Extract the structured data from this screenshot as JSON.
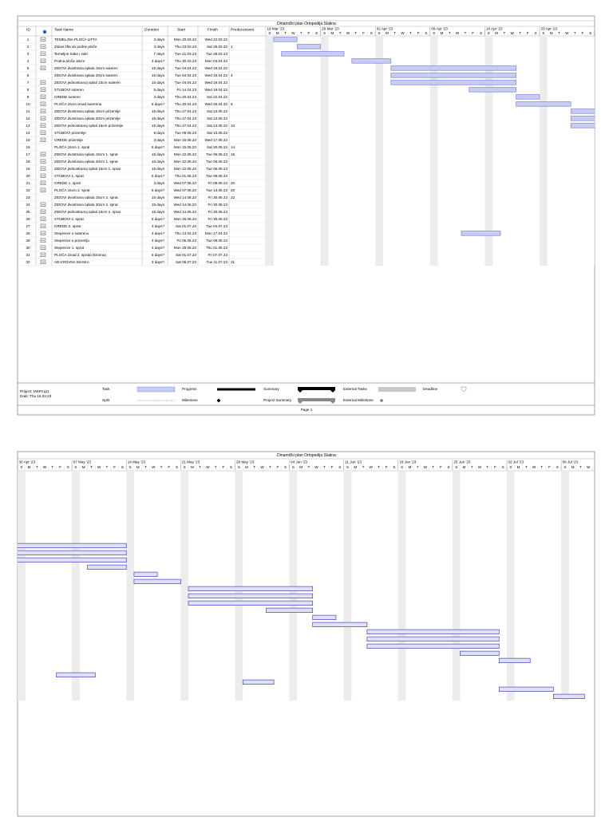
{
  "title": "Dinamički plan Ortopedija Slatina",
  "columns": {
    "id": "ID",
    "name": "Task Name",
    "duration": "Duration",
    "start": "Start",
    "finish": "Finish",
    "pred": "Predecessors"
  },
  "day_letters": [
    "S",
    "M",
    "T",
    "W",
    "T",
    "F",
    "S"
  ],
  "page1_weeks": [
    "19 Mar '23",
    "26 Mar '23",
    "02 Apr '23",
    "09 Apr '23",
    "16 Apr '23",
    "23 Apr '23"
  ],
  "page2_weeks": [
    "30 Apr '23",
    "07 May '23",
    "14 May '23",
    "21 May '23",
    "28 May '23",
    "04 Jun '23",
    "11 Jun '23",
    "18 Jun '23",
    "25 Jun '23",
    "02 Jul '23",
    "09 Jul '23"
  ],
  "rows": [
    {
      "id": 1,
      "name": "TEMELJNA PLOČA LIFTA",
      "duration": "3 days",
      "start": "Mon 20.03.23",
      "finish": "Wed 22.03.23"
    },
    {
      "id": 2,
      "name": "Zidovi lifta do podne ploče",
      "duration": "3 days",
      "start": "Thu 23.03.23",
      "finish": "Sat 25.03.23",
      "pred": 1
    },
    {
      "id": 3,
      "name": "Temeljne trake i sokl",
      "duration": "7 days",
      "start": "Tue 21.03.23",
      "finish": "Tue 28.03.23"
    },
    {
      "id": 4,
      "name": "Podna ploča 15cm",
      "duration": "4 days?",
      "start": "Thu 30.03.23",
      "finish": "Mon 03.04.23"
    },
    {
      "id": 5,
      "name": "ZIDOVI dvostrana oplata 15cm suteren",
      "duration": "15 days",
      "start": "Tue 04.04.23",
      "finish": "Wed 19.04.23"
    },
    {
      "id": 6,
      "name": "ZIDOVI dvostrana oplata 20cm suteren",
      "duration": "15 days",
      "start": "Tue 04.04.23",
      "finish": "Wed 19.04.23",
      "pred": 4
    },
    {
      "id": 7,
      "name": "ZIDOVI jednostranoj oplati 15cm suteren",
      "duration": "15 days",
      "start": "Tue 04.04.23",
      "finish": "Wed 19.04.23"
    },
    {
      "id": 8,
      "name": "STUBOVI suteren",
      "duration": "5 days",
      "start": "Fri 14.04.23",
      "finish": "Wed 19.04.23"
    },
    {
      "id": 9,
      "name": "GREDE suteren",
      "duration": "3 days",
      "start": "Thu 20.04.23",
      "finish": "Sat 22.04.23"
    },
    {
      "id": 10,
      "name": "PLOČA 15cm iznad suterena",
      "duration": "6 days?",
      "start": "Thu 20.04.23",
      "finish": "Wed 26.04.23",
      "pred": 8
    },
    {
      "id": 11,
      "name": "ZIDOVI dvostrana oplata 15cm prizemlje",
      "duration": "15 days",
      "start": "Thu 27.04.23",
      "finish": "Sat 13.05.23"
    },
    {
      "id": 12,
      "name": "ZIDOVI dvostrana oplata 20cm prizemlje",
      "duration": "15 days",
      "start": "Thu 27.04.23",
      "finish": "Sat 13.05.23"
    },
    {
      "id": 13,
      "name": "ZIDOVI jednostranoj oplati 15cm prizemlje",
      "duration": "15 days",
      "start": "Thu 27.04.23",
      "finish": "Sat 13.05.23",
      "pred": 10
    },
    {
      "id": 14,
      "name": "STUBOVI prizemlje",
      "duration": "5 days",
      "start": "Tue 09.05.23",
      "finish": "Sat 13.05.23"
    },
    {
      "id": 15,
      "name": "GREDE prizemlje",
      "duration": "3 days",
      "start": "Mon 15.05.23",
      "finish": "Wed 17.05.23"
    },
    {
      "id": 16,
      "name": "PLOČA 15cm 1. sprat",
      "duration": "6 days?",
      "start": "Mon 15.05.23",
      "finish": "Sat 20.05.23",
      "pred": 14
    },
    {
      "id": 17,
      "name": "ZIDOVI dvostrana oplata 15cm 1. sprat",
      "duration": "15 days",
      "start": "Mon 22.05.23",
      "finish": "Tue 06.06.23",
      "pred": 16
    },
    {
      "id": 18,
      "name": "ZIDOVI dvostrana oplata 20cm 1. sprat",
      "duration": "15 days",
      "start": "Mon 22.05.23",
      "finish": "Tue 06.06.23"
    },
    {
      "id": 19,
      "name": "ZIDOVI jednostranoj oplati 15cm 1. sprat",
      "duration": "15 days",
      "start": "Mon 22.05.23",
      "finish": "Tue 06.06.23"
    },
    {
      "id": 20,
      "name": "STUBOVI 1. sprat",
      "duration": "5 days?",
      "start": "Thu 01.06.23",
      "finish": "Tue 06.06.23"
    },
    {
      "id": 21,
      "name": "GREDE 1. sprat",
      "duration": "3 days",
      "start": "Wed 07.06.23",
      "finish": "Fri 09.06.23",
      "pred": 20
    },
    {
      "id": 22,
      "name": "PLOČA 15cm 2. sprat",
      "duration": "6 days?",
      "start": "Wed 07.06.23",
      "finish": "Tue 13.06.23",
      "pred": 20
    },
    {
      "id": 23,
      "name": "ZIDOVI dvostrana oplata 15cm 2. sprat",
      "duration": "15 days",
      "start": "Wed 14.06.23",
      "finish": "Fri 30.06.23",
      "pred": 22
    },
    {
      "id": 24,
      "name": "ZIDOVI dvostrana oplata 20cm 2. sprat",
      "duration": "15 days",
      "start": "Wed 14.06.23",
      "finish": "Fri 30.06.23"
    },
    {
      "id": 25,
      "name": "ZIDOVI jednostranoj oplati 15cm 2. sprat",
      "duration": "15 days",
      "start": "Wed 14.06.23",
      "finish": "Fri 30.06.23"
    },
    {
      "id": 26,
      "name": "STUBOVI 2. sprat",
      "duration": "5 days?",
      "start": "Mon 26.06.23",
      "finish": "Fri 30.06.23"
    },
    {
      "id": 27,
      "name": "GREDE 2. sprat",
      "duration": "3 days?",
      "start": "Sat 01.07.23",
      "finish": "Tue 04.07.23"
    },
    {
      "id": 28,
      "name": "Stepenice u suterenu",
      "duration": "4 days?",
      "start": "Thu 13.04.23",
      "finish": "Mon 17.04.23"
    },
    {
      "id": 29,
      "name": "Stepenice u prizemlju",
      "duration": "4 days?",
      "start": "Fri 05.05.23",
      "finish": "Tue 09.05.23"
    },
    {
      "id": 30,
      "name": "Stepenice 1. sprat",
      "duration": "4 days?",
      "start": "Mon 29.05.23",
      "finish": "Thu 01.06.23"
    },
    {
      "id": 31,
      "name": "PLOČA iznad 2. sprata (krovna)",
      "duration": "6 days?",
      "start": "Sat 01.07.23",
      "finish": "Fri 07.07.23"
    },
    {
      "id": 32,
      "name": "AB KROVNA MASKA",
      "duration": "3 days?",
      "start": "Sat 08.07.23",
      "finish": "Tue 11.07.23",
      "pred": 31
    }
  ],
  "project": "Project: MSProj11",
  "date": "Date: Thu 16.03.23",
  "legend": {
    "task": "Task",
    "split": "Split",
    "progress": "Progress",
    "milestone": "Milestone",
    "summary": "Summary",
    "project_summary": "Project Summary",
    "external_tasks": "External Tasks",
    "external_milestone": "External Milestone",
    "deadline": "Deadline"
  },
  "page_label": "Page 1"
}
